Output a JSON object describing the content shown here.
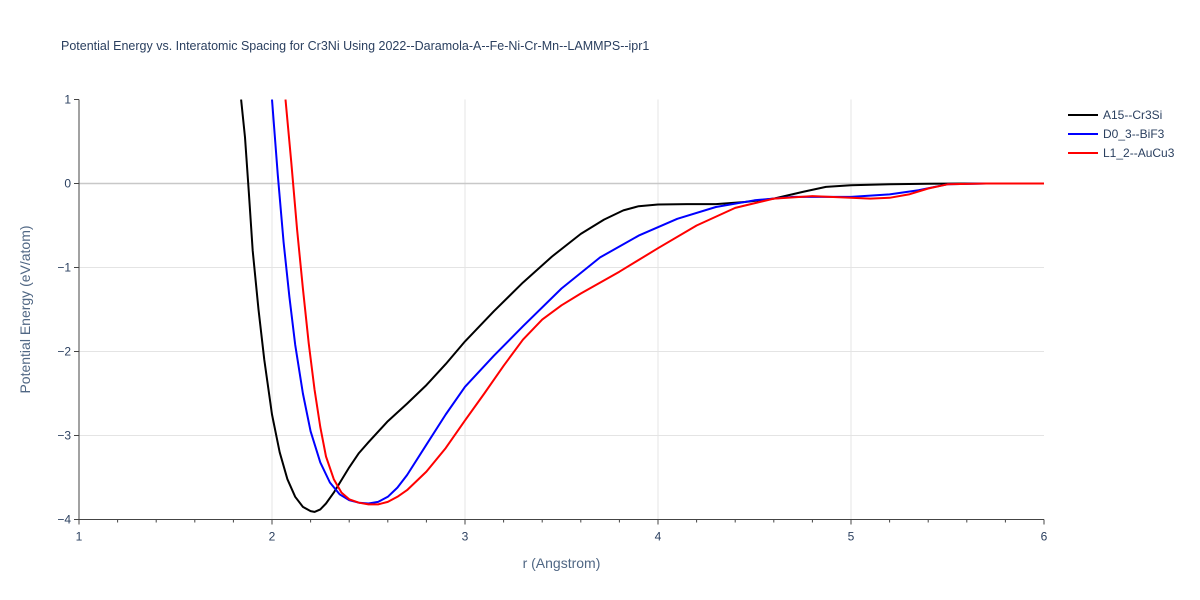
{
  "chart_data": {
    "type": "line",
    "title": "Potential Energy vs. Interatomic Spacing for Cr3Ni Using 2022--Daramola-A--Fe-Ni-Cr-Mn--LAMMPS--ipr1",
    "xlabel": "r (Angstrom)",
    "ylabel": "Potential Energy (eV/atom)",
    "xlim": [
      1,
      6
    ],
    "ylim": [
      -4,
      1
    ],
    "xticks": [
      1,
      2,
      3,
      4,
      5,
      6
    ],
    "yticks": [
      -4,
      -3,
      -2,
      -1,
      0,
      1
    ],
    "xtick_labels": [
      "1",
      "2",
      "3",
      "4",
      "5",
      "6"
    ],
    "ytick_labels": [
      "−4",
      "−3",
      "−2",
      "−1",
      "0",
      "1"
    ],
    "grid": true,
    "legend_position": "top-right",
    "series": [
      {
        "name": "A15--Cr3Si",
        "color": "#000000",
        "x": [
          1.84,
          1.86,
          1.88,
          1.9,
          1.93,
          1.96,
          2.0,
          2.04,
          2.08,
          2.12,
          2.16,
          2.2,
          2.22,
          2.25,
          2.28,
          2.32,
          2.36,
          2.4,
          2.45,
          2.5,
          2.6,
          2.7,
          2.8,
          2.9,
          3.0,
          3.15,
          3.3,
          3.45,
          3.6,
          3.72,
          3.82,
          3.9,
          4.0,
          4.15,
          4.3,
          4.45,
          4.6,
          4.75,
          4.87,
          5.0,
          5.2,
          5.4,
          5.6,
          5.8,
          6.0
        ],
        "y": [
          1.0,
          0.55,
          -0.1,
          -0.8,
          -1.5,
          -2.1,
          -2.75,
          -3.2,
          -3.52,
          -3.73,
          -3.85,
          -3.9,
          -3.91,
          -3.88,
          -3.81,
          -3.68,
          -3.53,
          -3.38,
          -3.21,
          -3.08,
          -2.83,
          -2.62,
          -2.4,
          -2.15,
          -1.88,
          -1.52,
          -1.18,
          -0.87,
          -0.6,
          -0.43,
          -0.32,
          -0.27,
          -0.25,
          -0.245,
          -0.245,
          -0.22,
          -0.18,
          -0.1,
          -0.04,
          -0.02,
          -0.01,
          -0.003,
          0.0,
          0.0,
          0.0
        ]
      },
      {
        "name": "D0_3--BiF3",
        "color": "#0000ff",
        "x": [
          2.0,
          2.03,
          2.06,
          2.09,
          2.12,
          2.16,
          2.2,
          2.25,
          2.3,
          2.35,
          2.4,
          2.45,
          2.5,
          2.55,
          2.6,
          2.65,
          2.7,
          2.8,
          2.9,
          3.0,
          3.15,
          3.3,
          3.5,
          3.7,
          3.9,
          4.1,
          4.3,
          4.5,
          4.7,
          4.9,
          5.0,
          5.2,
          5.35,
          5.5,
          5.7,
          6.0
        ],
        "y": [
          1.0,
          0.1,
          -0.7,
          -1.35,
          -1.92,
          -2.5,
          -2.95,
          -3.32,
          -3.56,
          -3.7,
          -3.77,
          -3.8,
          -3.81,
          -3.79,
          -3.73,
          -3.62,
          -3.47,
          -3.11,
          -2.75,
          -2.42,
          -2.05,
          -1.7,
          -1.25,
          -0.88,
          -0.62,
          -0.42,
          -0.28,
          -0.2,
          -0.16,
          -0.16,
          -0.16,
          -0.13,
          -0.08,
          -0.01,
          0.0,
          0.0
        ]
      },
      {
        "name": "L1_2--AuCu3",
        "color": "#ff0000",
        "x": [
          2.07,
          2.1,
          2.13,
          2.16,
          2.19,
          2.22,
          2.25,
          2.28,
          2.32,
          2.36,
          2.4,
          2.45,
          2.5,
          2.55,
          2.6,
          2.65,
          2.7,
          2.8,
          2.9,
          3.0,
          3.1,
          3.2,
          3.3,
          3.4,
          3.5,
          3.6,
          3.8,
          4.0,
          4.2,
          4.4,
          4.6,
          4.8,
          5.0,
          5.1,
          5.2,
          5.3,
          5.4,
          5.5,
          5.7,
          6.0
        ],
        "y": [
          1.0,
          0.25,
          -0.55,
          -1.25,
          -1.9,
          -2.45,
          -2.9,
          -3.25,
          -3.52,
          -3.68,
          -3.76,
          -3.8,
          -3.82,
          -3.82,
          -3.79,
          -3.73,
          -3.65,
          -3.43,
          -3.15,
          -2.82,
          -2.5,
          -2.17,
          -1.86,
          -1.62,
          -1.45,
          -1.31,
          -1.05,
          -0.77,
          -0.5,
          -0.29,
          -0.18,
          -0.15,
          -0.17,
          -0.18,
          -0.17,
          -0.13,
          -0.06,
          -0.01,
          0.0,
          0.0
        ]
      }
    ]
  }
}
